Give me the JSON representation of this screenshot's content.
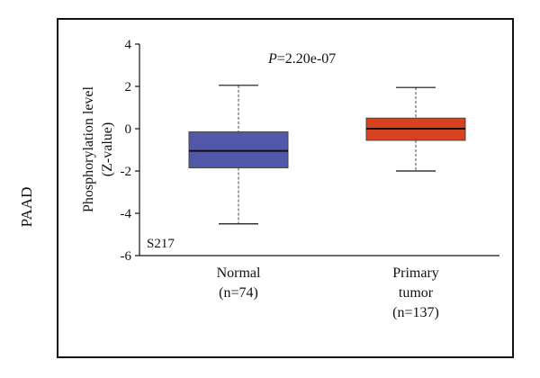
{
  "side_label": "PAAD",
  "chart_data": {
    "type": "box",
    "ylabel_line1": "Phosphorylation level",
    "ylabel_line2": "(Z-value)",
    "annotation": {
      "prefix": "P",
      "text": "=2.20e-07"
    },
    "site_label": "S217",
    "ylim": [
      -6,
      4
    ],
    "yticks": [
      4,
      2,
      0,
      -2,
      -4,
      -6
    ],
    "grid": false,
    "categories": [
      {
        "lines": [
          "Normal",
          "(n=74)"
        ]
      },
      {
        "lines": [
          "Primary",
          "tumor",
          "(n=137)"
        ]
      }
    ],
    "boxes": [
      {
        "min": -4.5,
        "q1": -1.85,
        "median": -1.05,
        "q3": -0.15,
        "max": 2.05,
        "color": "#5258a8"
      },
      {
        "min": -2.0,
        "q1": -0.55,
        "median": 0.0,
        "q3": 0.5,
        "max": 1.95,
        "color": "#d9421f"
      }
    ]
  }
}
